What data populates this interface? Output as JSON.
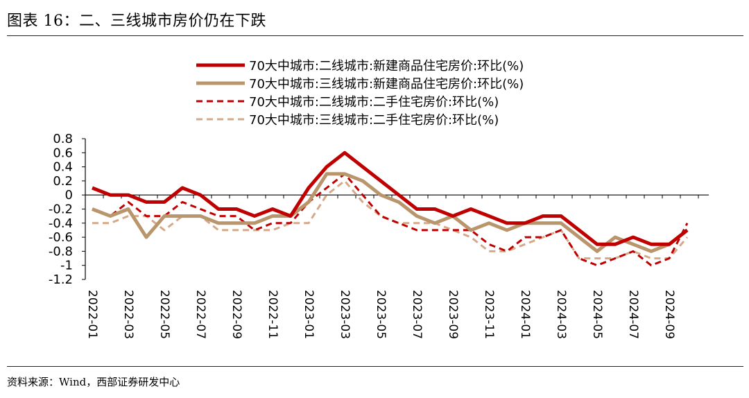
{
  "figure": {
    "title": "图表 16：二、三线城市房价仍在下跌",
    "source": "资料来源：Wind，西部证券研发中心"
  },
  "chart_data": {
    "type": "line",
    "ylim": [
      -1.2,
      0.8
    ],
    "yticks": [
      0.8,
      0.6,
      0.4,
      0.2,
      0,
      -0.2,
      -0.4,
      -0.6,
      -0.8,
      -1,
      -1.2
    ],
    "ytick_labels": [
      "0.8",
      "0.6",
      "0.4",
      "0.2",
      "0",
      "-0.2",
      "-0.4",
      "-0.6",
      "-0.8",
      "-1",
      "-1.2"
    ],
    "x": [
      "2022-01",
      "2022-02",
      "2022-03",
      "2022-04",
      "2022-05",
      "2022-06",
      "2022-07",
      "2022-08",
      "2022-09",
      "2022-10",
      "2022-11",
      "2022-12",
      "2023-01",
      "2023-02",
      "2023-03",
      "2023-04",
      "2023-05",
      "2023-06",
      "2023-07",
      "2023-08",
      "2023-09",
      "2023-10",
      "2023-11",
      "2023-12",
      "2024-01",
      "2024-02",
      "2024-03",
      "2024-04",
      "2024-05",
      "2024-06",
      "2024-07",
      "2024-08",
      "2024-09",
      "2024-10"
    ],
    "xtick_labels": [
      "2022-01",
      "2022-03",
      "2022-05",
      "2022-07",
      "2022-09",
      "2022-11",
      "2023-01",
      "2023-03",
      "2023-05",
      "2023-07",
      "2023-09",
      "2023-11",
      "2024-01",
      "2024-03",
      "2024-05",
      "2024-07",
      "2024-09"
    ],
    "legend_position": "top",
    "grid": false,
    "series": [
      {
        "name": "70大中城市:二线城市:新建商品住宅房价:环比(%)",
        "color": "#c00000",
        "style": "solid",
        "values": [
          0.1,
          0.0,
          0.0,
          -0.1,
          -0.1,
          0.1,
          0.0,
          -0.2,
          -0.2,
          -0.3,
          -0.2,
          -0.3,
          0.1,
          0.4,
          0.6,
          0.4,
          0.2,
          0.0,
          -0.2,
          -0.2,
          -0.3,
          -0.2,
          -0.3,
          -0.4,
          -0.4,
          -0.3,
          -0.3,
          -0.5,
          -0.7,
          -0.7,
          -0.6,
          -0.7,
          -0.7,
          -0.5
        ]
      },
      {
        "name": "70大中城市:三线城市:新建商品住宅房价:环比(%)",
        "color": "#b8956b",
        "style": "solid",
        "values": [
          -0.2,
          -0.3,
          -0.2,
          -0.6,
          -0.3,
          -0.3,
          -0.3,
          -0.4,
          -0.4,
          -0.4,
          -0.3,
          -0.3,
          -0.1,
          0.3,
          0.3,
          0.2,
          0.0,
          -0.1,
          -0.3,
          -0.4,
          -0.3,
          -0.5,
          -0.4,
          -0.5,
          -0.4,
          -0.4,
          -0.4,
          -0.6,
          -0.8,
          -0.6,
          -0.7,
          -0.8,
          -0.7,
          -0.5
        ]
      },
      {
        "name": "70大中城市:二线城市:二手住宅房价:环比(%)",
        "color": "#c00000",
        "style": "dashed",
        "values": [
          -0.2,
          -0.3,
          -0.1,
          -0.3,
          -0.3,
          -0.1,
          -0.2,
          -0.3,
          -0.3,
          -0.5,
          -0.4,
          -0.4,
          -0.1,
          0.1,
          0.3,
          0.0,
          -0.3,
          -0.4,
          -0.5,
          -0.5,
          -0.5,
          -0.5,
          -0.7,
          -0.8,
          -0.6,
          -0.6,
          -0.5,
          -0.9,
          -1.0,
          -0.9,
          -0.8,
          -1.0,
          -0.9,
          -0.4
        ]
      },
      {
        "name": "70大中城市:三线城市:二手住宅房价:环比(%)",
        "color": "#d4a98a",
        "style": "dashed",
        "values": [
          -0.4,
          -0.4,
          -0.3,
          -0.3,
          -0.5,
          -0.3,
          -0.3,
          -0.5,
          -0.5,
          -0.5,
          -0.5,
          -0.4,
          -0.4,
          0.0,
          0.2,
          -0.1,
          -0.3,
          -0.4,
          -0.4,
          -0.4,
          -0.5,
          -0.6,
          -0.8,
          -0.8,
          -0.7,
          -0.6,
          -0.5,
          -0.9,
          -0.9,
          -0.9,
          -0.8,
          -0.9,
          -0.9,
          -0.6
        ]
      }
    ]
  }
}
